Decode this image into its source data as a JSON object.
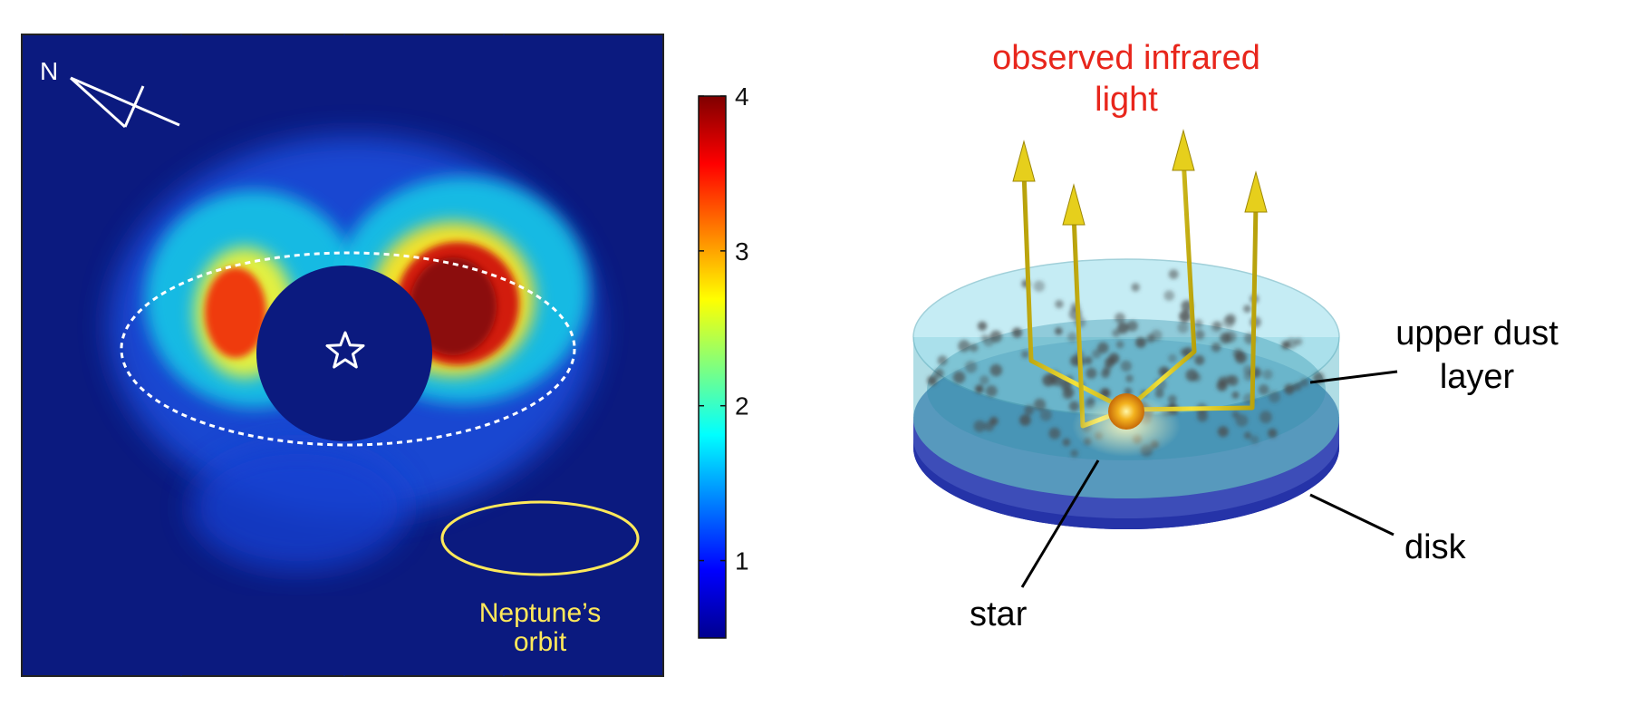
{
  "left_panel": {
    "compass_label": "N",
    "orbit_label_line1": "Neptune’s",
    "orbit_label_line2": "orbit",
    "colorbar": {
      "ticks": [
        "1",
        "2",
        "3",
        "4"
      ],
      "tick_values": [
        1,
        2,
        3,
        4
      ],
      "range": [
        0.5,
        4
      ],
      "colormap": "jet"
    }
  },
  "right_panel": {
    "title_line1": "observed infrared",
    "title_line2": "light",
    "label_dust_line1": "upper dust",
    "label_dust_line2": "layer",
    "label_disk": "disk",
    "label_star": "star"
  },
  "colors": {
    "map_background": "#0b1a7f",
    "orbit_ellipse": "#ffe95a",
    "orbit_text": "#ffe95a",
    "title_text": "#e8261c",
    "arrow": "#e3cd1f",
    "disk": "#2b3bb0",
    "dust_layer": "#7fd3e0"
  }
}
